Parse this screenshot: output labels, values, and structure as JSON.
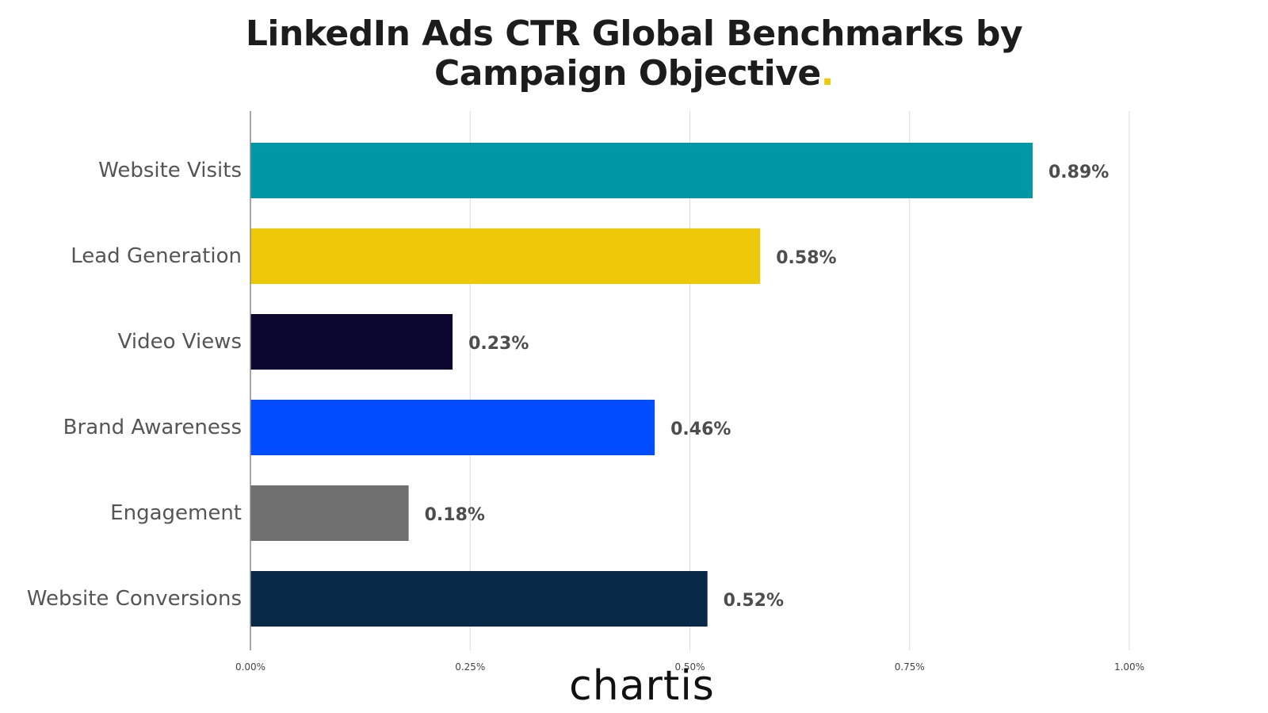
{
  "chart_data": {
    "type": "bar",
    "orientation": "horizontal",
    "title_line1": "LinkedIn Ads CTR Global Benchmarks by",
    "title_line2": "Campaign Objective",
    "title_dot": ".",
    "categories": [
      "Website Visits",
      "Lead Generation",
      "Video Views",
      "Brand Awareness",
      "Engagement",
      "Website Conversions"
    ],
    "values": [
      0.89,
      0.58,
      0.23,
      0.46,
      0.18,
      0.52
    ],
    "value_labels": [
      "0.89%",
      "0.58%",
      "0.23%",
      "0.46%",
      "0.18%",
      "0.52%"
    ],
    "bar_colors": [
      "#0097a7",
      "#eec909",
      "#0c0730",
      "#024dff",
      "#6f6f6f",
      "#082848"
    ],
    "xlim": [
      0,
      1.0
    ],
    "xticks": [
      0,
      0.25,
      0.5,
      0.75,
      1.0
    ],
    "xtick_labels": [
      "0.00%",
      "0.25%",
      "0.50%",
      "0.75%",
      "1.00%"
    ],
    "grid": true,
    "legend": false
  },
  "logo_text": "chartis",
  "colors": {
    "title": "#1c1c1c",
    "accent_dot": "#eec909",
    "grid": "#d9d9d9",
    "label": "#555555",
    "value_label": "#4d4d4d"
  }
}
